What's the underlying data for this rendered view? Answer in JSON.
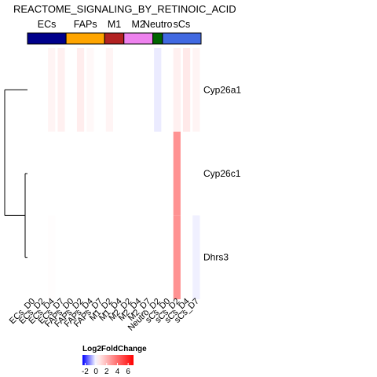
{
  "chart_data": {
    "type": "heatmap",
    "title": "REACTOME_SIGNALING_BY_RETINOIC_ACID",
    "columns": [
      "ECs_D0",
      "ECs_D2",
      "ECs_D4",
      "ECs_D7",
      "FAPs_D0",
      "FAPs_D2",
      "FAPs_D4",
      "FAPs_D7",
      "M1_D2",
      "M1_D4",
      "M2_D2",
      "M2_D4",
      "M2_D7",
      "Neutro_D2",
      "sCs_D0",
      "sCs_D2",
      "sCs_D4",
      "sCs_D7"
    ],
    "rows": [
      "Cyp26a1",
      "Cyp26c1",
      "Dhrs3"
    ],
    "column_groups": [
      {
        "name": "ECs",
        "span": 4,
        "color": "#00008B"
      },
      {
        "name": "FAPs",
        "span": 4,
        "color": "#FFA500"
      },
      {
        "name": "M1",
        "span": 2,
        "color": "#B22222"
      },
      {
        "name": "M2",
        "span": 3,
        "color": "#EE82EE"
      },
      {
        "name": "Neutro",
        "span": 1,
        "color": "#006400"
      },
      {
        "name": "sCs",
        "span": 4,
        "color": "#4169E1"
      }
    ],
    "values": [
      [
        0.0,
        0.0,
        0.3,
        0.4,
        0.0,
        0.5,
        0.2,
        0.0,
        0.3,
        0.0,
        0.0,
        0.0,
        0.0,
        -0.2,
        0.0,
        0.4,
        0.6,
        0.3
      ],
      [
        0.0,
        0.0,
        0.0,
        0.0,
        0.0,
        0.0,
        0.0,
        0.0,
        0.0,
        0.0,
        0.0,
        0.0,
        0.0,
        0.0,
        0.0,
        3.0,
        0.0,
        0.0
      ],
      [
        0.0,
        0.0,
        0.05,
        0.0,
        0.0,
        0.0,
        0.0,
        0.0,
        0.0,
        0.0,
        0.0,
        0.0,
        0.0,
        0.0,
        0.0,
        3.0,
        0.0,
        -0.15
      ]
    ],
    "legend": {
      "title": "Log2FoldChange",
      "ticks": [
        -2,
        0,
        2,
        4,
        6
      ],
      "range": [
        -2.5,
        7
      ],
      "colors": {
        "low": "#0000FF",
        "mid": "#FFFFFF",
        "high": "#FF0000"
      },
      "placement": "bottom-left"
    },
    "row_dendrogram": true
  }
}
